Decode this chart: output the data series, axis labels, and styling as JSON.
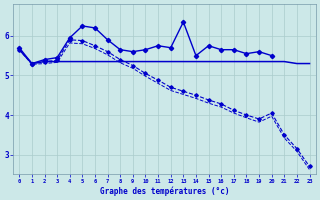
{
  "xlabel": "Graphe des températures (°c)",
  "background_color": "#cce8e8",
  "grid_color": "#aacccc",
  "line_color": "#0000cc",
  "xlim": [
    -0.5,
    23.5
  ],
  "ylim": [
    2.5,
    6.8
  ],
  "yticks": [
    3,
    4,
    5,
    6
  ],
  "x": [
    0,
    1,
    2,
    3,
    4,
    5,
    6,
    7,
    8,
    9,
    10,
    11,
    12,
    13,
    14,
    15,
    16,
    17,
    18,
    19,
    20,
    21,
    22,
    23
  ],
  "line_upper_marker": [
    5.7,
    5.3,
    5.4,
    5.45,
    5.95,
    6.25,
    6.2,
    5.9,
    5.65,
    5.6,
    5.65,
    5.75,
    5.7,
    6.35,
    5.5,
    5.75,
    5.65,
    5.65,
    5.55,
    5.6,
    5.5,
    null,
    null,
    null
  ],
  "line_flat": [
    5.65,
    5.3,
    5.35,
    5.35,
    5.35,
    5.35,
    5.35,
    5.35,
    5.35,
    5.35,
    5.35,
    5.35,
    5.35,
    5.35,
    5.35,
    5.35,
    5.35,
    5.35,
    5.35,
    5.35,
    5.35,
    5.35,
    5.3,
    5.3
  ],
  "line_dashed_upper": [
    5.65,
    5.3,
    5.35,
    5.38,
    5.9,
    5.88,
    5.75,
    5.6,
    5.4,
    5.25,
    5.05,
    4.88,
    4.7,
    4.6,
    4.5,
    4.38,
    4.28,
    4.12,
    4.0,
    3.9,
    4.05,
    3.5,
    3.15,
    2.7
  ],
  "line_dashed_lower": [
    5.65,
    5.28,
    5.3,
    5.33,
    5.82,
    5.8,
    5.68,
    5.52,
    5.32,
    5.18,
    4.98,
    4.8,
    4.62,
    4.52,
    4.42,
    4.3,
    4.2,
    4.05,
    3.93,
    3.82,
    3.97,
    3.42,
    3.08,
    2.62
  ]
}
